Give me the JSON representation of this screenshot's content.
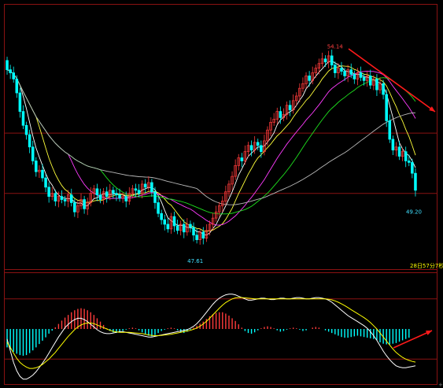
{
  "theme": {
    "background": "#000000",
    "frame": "#8a1212",
    "bull_candle": "#ff3b3b",
    "bear_candle": "#00ffff",
    "ma_colors": [
      "#ffffff",
      "#ffff3a",
      "#ff3bff",
      "#1ee21e",
      "#b9b9b9"
    ],
    "dif_color": "#ffffff",
    "dea_color": "#ffff00",
    "hist_pos_color": "#ff3b3b",
    "hist_neg_color": "#00ffff",
    "annotation_arrow": "#ff1a1a",
    "label_max_color": "#ff4040",
    "label_min_color": "#40e0ff"
  },
  "labels": {
    "max_price": "54.14",
    "min_price_left": "47.61",
    "min_price_right": "49.20",
    "time_label": "28日57分7秒",
    "corner_mark": "+"
  },
  "chart_data": [
    {
      "type": "candlestick",
      "panel": "price",
      "title": "",
      "xlabel": "",
      "ylabel": "",
      "ylim": [
        47.2,
        55.5
      ],
      "grid": false,
      "reference_lines": [
        51.5,
        49.55
      ],
      "moving_averages": 5,
      "annotation": {
        "kind": "arrow",
        "direction": "down-right"
      },
      "close": [
        53.55,
        53.45,
        53.25,
        52.8,
        52.2,
        51.75,
        51.45,
        51.05,
        50.6,
        50.25,
        50.3,
        50.05,
        49.75,
        49.45,
        49.55,
        49.3,
        49.45,
        49.35,
        49.3,
        49.5,
        49.25,
        48.95,
        49.15,
        49.35,
        49.05,
        49.25,
        49.55,
        49.7,
        49.5,
        49.35,
        49.6,
        49.45,
        49.65,
        49.55,
        49.5,
        49.4,
        49.45,
        49.3,
        49.55,
        49.7,
        49.65,
        49.55,
        49.85,
        49.75,
        49.9,
        49.6,
        49.25,
        48.9,
        48.7,
        48.55,
        48.4,
        48.8,
        48.5,
        48.35,
        48.55,
        48.3,
        48.55,
        48.45,
        48.2,
        48.05,
        48.3,
        48.1,
        48.35,
        48.55,
        48.75,
        48.95,
        49.15,
        49.3,
        49.6,
        49.85,
        50.1,
        50.45,
        50.7,
        50.6,
        50.9,
        51.1,
        50.95,
        51.2,
        51.1,
        50.9,
        51.25,
        51.6,
        51.85,
        51.95,
        52.2,
        52.0,
        52.1,
        52.4,
        52.25,
        52.55,
        52.7,
        52.95,
        53.1,
        53.35,
        53.2,
        53.45,
        53.6,
        53.75,
        53.9,
        53.8,
        54.0,
        53.7,
        53.45,
        53.6,
        53.5,
        53.35,
        53.55,
        53.4,
        53.25,
        53.45,
        53.3,
        53.2,
        53.35,
        53.05,
        53.25,
        52.9,
        53.1,
        52.75,
        51.9,
        51.3,
        50.95,
        51.05,
        50.75,
        50.9,
        50.6,
        50.55,
        50.2,
        49.65
      ],
      "open": [
        53.85,
        53.55,
        53.45,
        53.25,
        52.8,
        52.2,
        51.75,
        51.45,
        51.05,
        50.6,
        50.25,
        50.3,
        50.05,
        49.75,
        49.45,
        49.55,
        49.3,
        49.45,
        49.35,
        49.3,
        49.5,
        49.25,
        48.95,
        49.15,
        49.35,
        49.05,
        49.25,
        49.55,
        49.7,
        49.5,
        49.35,
        49.6,
        49.45,
        49.65,
        49.55,
        49.5,
        49.4,
        49.45,
        49.3,
        49.55,
        49.7,
        49.65,
        49.55,
        49.85,
        49.75,
        49.9,
        49.6,
        49.25,
        48.9,
        48.7,
        48.55,
        48.4,
        48.8,
        48.5,
        48.35,
        48.55,
        48.3,
        48.55,
        48.45,
        48.2,
        48.05,
        48.3,
        48.1,
        48.35,
        48.55,
        48.75,
        48.95,
        49.15,
        49.3,
        49.6,
        49.85,
        50.1,
        50.45,
        50.7,
        50.6,
        50.9,
        51.1,
        50.95,
        51.2,
        51.1,
        50.9,
        51.25,
        51.6,
        51.85,
        51.95,
        52.2,
        52.0,
        52.1,
        52.4,
        52.25,
        52.55,
        52.7,
        52.95,
        53.1,
        53.35,
        53.2,
        53.45,
        53.6,
        53.75,
        53.9,
        53.8,
        54.0,
        53.7,
        53.45,
        53.6,
        53.5,
        53.35,
        53.55,
        53.4,
        53.25,
        53.45,
        53.3,
        53.2,
        53.35,
        53.05,
        53.25,
        52.9,
        53.1,
        52.75,
        51.9,
        51.3,
        50.95,
        51.05,
        50.75,
        50.9,
        50.6,
        50.55,
        50.2
      ],
      "highlights": {
        "max": {
          "index": 101,
          "value": 54.14
        },
        "min_left": {
          "index": 59,
          "value": 47.61
        },
        "min_right": {
          "index": 127,
          "value": 49.2
        }
      }
    },
    {
      "type": "bar",
      "panel": "macd",
      "title": "",
      "xlabel": "",
      "ylabel": "",
      "ylim": [
        -1.6,
        1.6
      ],
      "reference_lines": [
        0.9,
        -0.9
      ],
      "histogram": [
        -0.55,
        -0.62,
        -0.68,
        -0.74,
        -0.78,
        -0.8,
        -0.78,
        -0.72,
        -0.64,
        -0.55,
        -0.45,
        -0.35,
        -0.25,
        -0.14,
        -0.05,
        0.05,
        0.15,
        0.25,
        0.34,
        0.42,
        0.5,
        0.56,
        0.6,
        0.62,
        0.6,
        0.56,
        0.5,
        0.42,
        0.32,
        0.22,
        0.12,
        0.02,
        -0.06,
        -0.1,
        -0.12,
        -0.1,
        -0.06,
        -0.02,
        0.02,
        0.04,
        0.02,
        -0.04,
        -0.1,
        -0.16,
        -0.2,
        -0.22,
        -0.18,
        -0.12,
        -0.06,
        -0.02,
        0.02,
        0.04,
        0.02,
        -0.04,
        -0.1,
        -0.12,
        -0.08,
        -0.02,
        0.04,
        0.1,
        0.16,
        0.22,
        0.3,
        0.38,
        0.44,
        0.48,
        0.5,
        0.5,
        0.46,
        0.4,
        0.32,
        0.24,
        0.14,
        0.04,
        -0.06,
        -0.12,
        -0.14,
        -0.1,
        -0.04,
        0.02,
        0.06,
        0.08,
        0.06,
        0.02,
        -0.04,
        -0.08,
        -0.06,
        -0.02,
        0.02,
        0.04,
        0.02,
        -0.02,
        -0.06,
        -0.04,
        0.0,
        0.04,
        0.06,
        0.04,
        0.0,
        -0.04,
        -0.08,
        -0.12,
        -0.16,
        -0.2,
        -0.24,
        -0.26,
        -0.26,
        -0.24,
        -0.22,
        -0.2,
        -0.22,
        -0.24,
        -0.26,
        -0.28,
        -0.3,
        -0.34,
        -0.4,
        -0.44,
        -0.46,
        -0.46,
        -0.44,
        -0.42,
        -0.38,
        -0.34,
        -0.3,
        -0.26
      ],
      "dif": [
        -0.3,
        -0.65,
        -1.0,
        -1.25,
        -1.42,
        -1.5,
        -1.5,
        -1.45,
        -1.38,
        -1.28,
        -1.15,
        -1.02,
        -0.88,
        -0.72,
        -0.56,
        -0.4,
        -0.24,
        -0.1,
        0.04,
        0.14,
        0.22,
        0.28,
        0.32,
        0.32,
        0.28,
        0.22,
        0.14,
        0.06,
        -0.02,
        -0.08,
        -0.12,
        -0.14,
        -0.14,
        -0.12,
        -0.1,
        -0.08,
        -0.08,
        -0.1,
        -0.12,
        -0.14,
        -0.16,
        -0.18,
        -0.2,
        -0.22,
        -0.24,
        -0.24,
        -0.22,
        -0.2,
        -0.18,
        -0.16,
        -0.14,
        -0.12,
        -0.1,
        -0.08,
        -0.06,
        -0.04,
        -0.02,
        0.02,
        0.08,
        0.16,
        0.26,
        0.38,
        0.5,
        0.62,
        0.74,
        0.84,
        0.92,
        0.98,
        1.02,
        1.04,
        1.04,
        1.02,
        0.98,
        0.94,
        0.9,
        0.86,
        0.86,
        0.88,
        0.9,
        0.92,
        0.92,
        0.9,
        0.88,
        0.88,
        0.9,
        0.92,
        0.92,
        0.9,
        0.9,
        0.92,
        0.94,
        0.94,
        0.92,
        0.9,
        0.9,
        0.92,
        0.94,
        0.94,
        0.92,
        0.9,
        0.86,
        0.8,
        0.72,
        0.64,
        0.56,
        0.48,
        0.4,
        0.34,
        0.28,
        0.22,
        0.16,
        0.1,
        0.02,
        -0.08,
        -0.2,
        -0.34,
        -0.5,
        -0.66,
        -0.8,
        -0.92,
        -1.02,
        -1.1,
        -1.14,
        -1.16,
        -1.16,
        -1.14,
        -1.12,
        -1.1
      ],
      "dea": [
        -0.4,
        -0.55,
        -0.72,
        -0.88,
        -1.0,
        -1.08,
        -1.14,
        -1.18,
        -1.18,
        -1.16,
        -1.12,
        -1.06,
        -0.98,
        -0.9,
        -0.8,
        -0.7,
        -0.58,
        -0.46,
        -0.34,
        -0.22,
        -0.12,
        -0.02,
        0.06,
        0.12,
        0.16,
        0.18,
        0.18,
        0.16,
        0.12,
        0.08,
        0.04,
        0.0,
        -0.04,
        -0.07,
        -0.09,
        -0.1,
        -0.1,
        -0.1,
        -0.1,
        -0.11,
        -0.12,
        -0.13,
        -0.14,
        -0.16,
        -0.18,
        -0.19,
        -0.2,
        -0.2,
        -0.19,
        -0.18,
        -0.17,
        -0.16,
        -0.14,
        -0.12,
        -0.1,
        -0.08,
        -0.06,
        -0.04,
        -0.01,
        0.03,
        0.08,
        0.15,
        0.23,
        0.32,
        0.42,
        0.52,
        0.62,
        0.71,
        0.79,
        0.85,
        0.9,
        0.93,
        0.94,
        0.94,
        0.93,
        0.92,
        0.91,
        0.9,
        0.9,
        0.9,
        0.9,
        0.9,
        0.9,
        0.9,
        0.9,
        0.9,
        0.9,
        0.9,
        0.9,
        0.9,
        0.9,
        0.9,
        0.9,
        0.9,
        0.9,
        0.9,
        0.9,
        0.9,
        0.9,
        0.9,
        0.89,
        0.87,
        0.84,
        0.8,
        0.75,
        0.7,
        0.64,
        0.58,
        0.52,
        0.46,
        0.4,
        0.34,
        0.27,
        0.19,
        0.1,
        0.0,
        -0.12,
        -0.24,
        -0.36,
        -0.48,
        -0.6,
        -0.7,
        -0.78,
        -0.85,
        -0.9,
        -0.94,
        -0.97,
        -0.99
      ],
      "annotation": {
        "kind": "arrow",
        "direction": "up-right"
      }
    }
  ]
}
